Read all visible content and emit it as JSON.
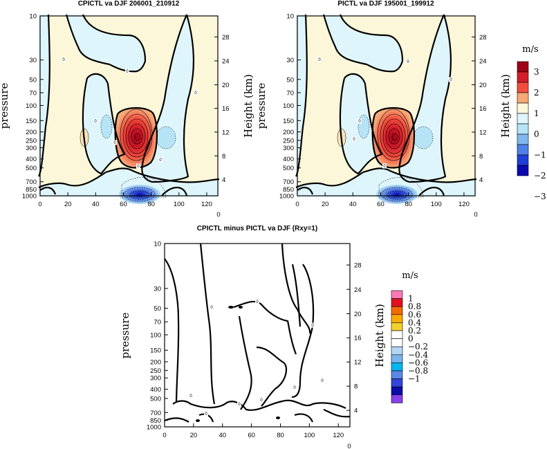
{
  "chart_data": [
    {
      "type": "contour",
      "title": "CPICTL va DJF 206001_210912",
      "xlabel": "",
      "ylabel": "pressure",
      "ylabel_right": "Height (km)",
      "xlim": [
        0,
        128
      ],
      "xticks": [
        "0",
        "20",
        "40",
        "60",
        "80",
        "100",
        "120"
      ],
      "yticks": [
        "10",
        "30",
        "50",
        "70",
        "100",
        "150",
        "200",
        "250",
        "300",
        "400",
        "500",
        "700",
        "850",
        "1000"
      ],
      "y2ticks": [
        "28",
        "24",
        "20",
        "16",
        "12",
        "8",
        "4"
      ],
      "y_scale": "log pressure",
      "corner_label": "0",
      "max_value": 3.1,
      "max_center": [
        68,
        200
      ],
      "min_value": -3.0,
      "min_center": [
        68,
        950
      ],
      "contour_labels": [
        "0",
        "0",
        "0",
        "0",
        "0",
        "0",
        "0"
      ]
    },
    {
      "type": "contour",
      "title": "PICTL va DJF 195001_199912",
      "xlabel": "",
      "ylabel": "pressure",
      "ylabel_right": "Height (km)",
      "xlim": [
        0,
        128
      ],
      "xticks": [
        "0",
        "20",
        "40",
        "60",
        "80",
        "100",
        "120"
      ],
      "yticks": [
        "10",
        "30",
        "50",
        "70",
        "100",
        "150",
        "200",
        "250",
        "300",
        "400",
        "500",
        "700",
        "850",
        "1000"
      ],
      "y2ticks": [
        "28",
        "24",
        "20",
        "16",
        "12",
        "8",
        "4"
      ],
      "y_scale": "log pressure",
      "corner_label": "0",
      "max_value": 3.1,
      "max_center": [
        68,
        200
      ],
      "min_value": -3.0,
      "min_center": [
        68,
        950
      ],
      "contour_labels": [
        "0",
        "0",
        "0",
        "0",
        "0",
        "0"
      ]
    },
    {
      "type": "contour",
      "title": "CPICTL minus PICTL va DJF (Rxy=1)",
      "xlabel": "",
      "ylabel": "pressure",
      "ylabel_right": "Height (km)",
      "xlim": [
        0,
        128
      ],
      "xticks": [
        "0",
        "20",
        "40",
        "60",
        "80",
        "100",
        "120"
      ],
      "yticks": [
        "10",
        "30",
        "50",
        "70",
        "100",
        "150",
        "200",
        "250",
        "300",
        "400",
        "500",
        "700",
        "850",
        "1000"
      ],
      "y2ticks": [
        "28",
        "24",
        "20",
        "16",
        "12",
        "8",
        "4"
      ],
      "y_scale": "log pressure",
      "corner_label": "0",
      "contour_labels": [
        "0",
        "0",
        "0",
        "0",
        "0",
        "0",
        "0",
        "0",
        "0"
      ]
    }
  ],
  "colorbars": [
    {
      "unit": "m/s",
      "labels": [
        "3",
        "2",
        "1",
        "0",
        "−1",
        "−2",
        "−3"
      ],
      "colors": [
        "#9e0016",
        "#d41d2a",
        "#f24e3e",
        "#f6a877",
        "#fdf7d9",
        "#dff5fc",
        "#b6e3f5",
        "#7fb8ee",
        "#4c82e6",
        "#1f3fd9",
        "#0a09b0"
      ]
    },
    {
      "unit": "m/s",
      "labels": [
        "1",
        "0.8",
        "0.6",
        "0.4",
        "0.2",
        "0",
        "−0.2",
        "−0.4",
        "−0.6",
        "−0.8",
        "−1"
      ],
      "colors": [
        "#ff7ab4",
        "#e3101e",
        "#f26b00",
        "#ffaa00",
        "#f2d12b",
        "#ffffff",
        "#ffffff",
        "#b3d6f4",
        "#7ab4ec",
        "#00b7ee",
        "#5a87e8",
        "#3344d8",
        "#0c0ca8",
        "#8a40e8"
      ]
    }
  ]
}
